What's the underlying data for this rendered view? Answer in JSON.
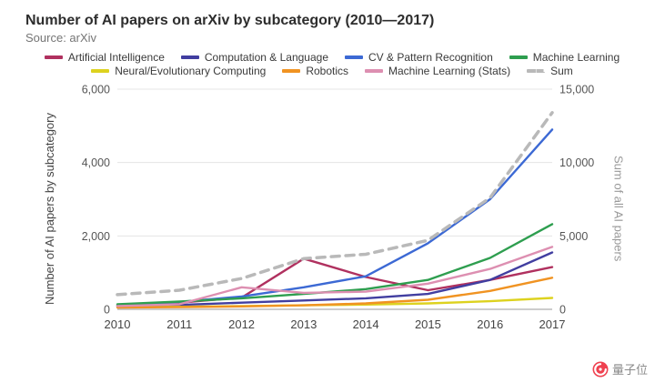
{
  "header": {
    "title": "Number of AI papers on arXiv by subcategory (2010—2017)",
    "source": "Source: arXiv"
  },
  "chart_data": {
    "type": "line",
    "title": "Number of AI papers on arXiv by subcategory (2010—2017)",
    "x": [
      2010,
      2011,
      2012,
      2013,
      2014,
      2015,
      2016,
      2017
    ],
    "x_tick_labels": [
      "2010",
      "2011",
      "2012",
      "2013",
      "2014",
      "2015",
      "2016",
      "2017"
    ],
    "ylabel_left": "Number of AI papers by subcategory",
    "ylabel_right": "Sum of all AI papers",
    "ylim_left": [
      0,
      6000
    ],
    "ylim_right": [
      0,
      15000
    ],
    "grid": true,
    "legend_position": "top",
    "yticks_left": {
      "values": [
        0,
        2000,
        4000,
        6000
      ],
      "labels": [
        "0",
        "2,000",
        "4,000",
        "6,000"
      ]
    },
    "yticks_right": {
      "values": [
        0,
        5000,
        10000,
        15000
      ],
      "labels": [
        "0",
        "5,000",
        "10,000",
        "15,000"
      ]
    },
    "series": [
      {
        "name": "Artificial Intelligence",
        "color": "#b0315f",
        "axis": "left",
        "dashed": false,
        "values": [
          100,
          180,
          320,
          1380,
          880,
          520,
          800,
          1150
        ]
      },
      {
        "name": "Computation & Language",
        "color": "#413ea0",
        "axis": "left",
        "dashed": false,
        "values": [
          90,
          120,
          180,
          240,
          300,
          420,
          800,
          1550
        ]
      },
      {
        "name": "CV & Pattern Recognition",
        "color": "#3c69d4",
        "axis": "left",
        "dashed": false,
        "values": [
          120,
          200,
          350,
          600,
          900,
          1800,
          3000,
          4900
        ]
      },
      {
        "name": "Machine Learning",
        "color": "#2e9e4f",
        "axis": "left",
        "dashed": false,
        "values": [
          140,
          210,
          300,
          420,
          550,
          800,
          1400,
          2320
        ]
      },
      {
        "name": "Neural/Evolutionary Computing",
        "color": "#ddd21f",
        "axis": "left",
        "dashed": false,
        "values": [
          60,
          70,
          90,
          110,
          130,
          160,
          220,
          310
        ]
      },
      {
        "name": "Robotics",
        "color": "#f09322",
        "axis": "left",
        "dashed": false,
        "values": [
          50,
          60,
          80,
          110,
          160,
          260,
          500,
          860
        ]
      },
      {
        "name": "Machine Learning (Stats)",
        "color": "#dd8fb1",
        "axis": "left",
        "dashed": false,
        "values": [
          90,
          140,
          600,
          450,
          480,
          700,
          1100,
          1700
        ]
      },
      {
        "name": "Sum",
        "color": "#b9b9b9",
        "axis": "right",
        "dashed": true,
        "values": [
          1000,
          1300,
          2100,
          3450,
          3750,
          4700,
          7600,
          13400
        ]
      }
    ]
  },
  "watermark": {
    "text": "量子位"
  }
}
